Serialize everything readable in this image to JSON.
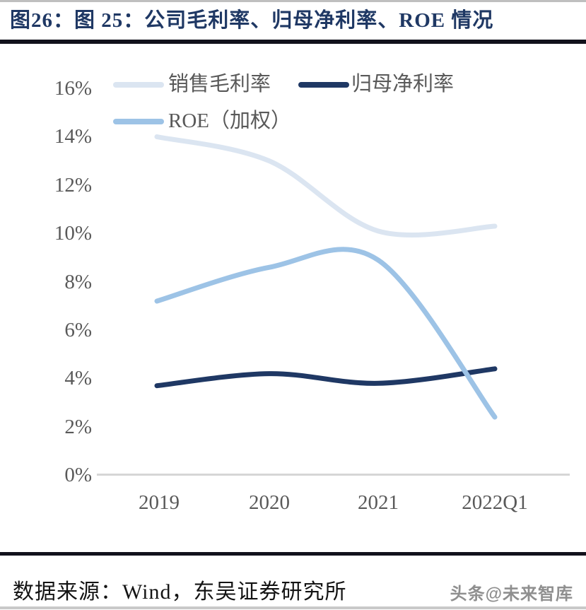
{
  "page": {
    "title": "图26：图 25：公司毛利率、归母净利率、ROE 情况",
    "footer": {
      "source": "数据来源：Wind，东吴证券研究所",
      "watermark": "头条@未来智库"
    }
  },
  "colors": {
    "title_navy": "#1f3864",
    "axis_text_gray": "#595959",
    "axis_line_gray": "#d6d6d6",
    "divider_dark": "#12121c"
  },
  "chart_data": {
    "type": "line",
    "smooth": true,
    "gridlines": false,
    "legend_position": "top-left",
    "categories": [
      "2019",
      "2020",
      "2021",
      "2022Q1"
    ],
    "series": [
      {
        "name": "销售毛利率",
        "color": "#dbe5f1",
        "values": [
          14.0,
          13.0,
          10.1,
          10.3
        ]
      },
      {
        "name": "归母净利率",
        "color": "#1f3864",
        "values": [
          3.7,
          4.2,
          3.8,
          4.4
        ]
      },
      {
        "name": "ROE（加权）",
        "color": "#9dc3e6",
        "values": [
          7.2,
          8.6,
          8.9,
          2.4
        ]
      }
    ],
    "ylim": [
      0,
      16
    ],
    "ytick_step": 2,
    "ytick_labels": [
      "16%",
      "14%",
      "12%",
      "10%",
      "8%",
      "6%",
      "4%",
      "2%",
      "0%"
    ],
    "unit": "percent"
  }
}
